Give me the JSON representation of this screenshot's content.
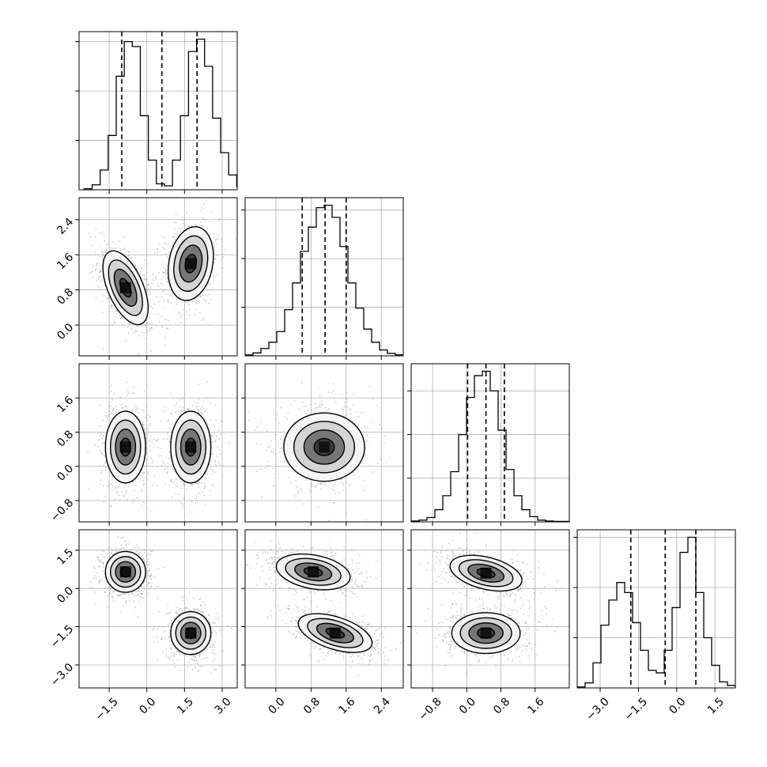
{
  "chart_data": {
    "type": "corner",
    "title": "",
    "parameters": [
      {
        "index": 0,
        "range": [
          -2.7,
          3.6
        ],
        "ticks": [
          -1.5,
          0.0,
          1.5,
          3.0
        ],
        "tick_labels": [
          "−1.5",
          "0.0",
          "1.5",
          "3.0"
        ],
        "quantiles": [
          -1.0,
          0.6,
          2.0
        ],
        "modes": [
          [
            -1.0,
            0.45
          ],
          [
            1.9,
            0.45
          ]
        ]
      },
      {
        "index": 1,
        "range": [
          -0.7,
          2.9
        ],
        "ticks": [
          0.0,
          0.8,
          1.6,
          2.4
        ],
        "tick_labels": [
          "0.0",
          "0.8",
          "1.6",
          "2.4"
        ],
        "quantiles": [
          0.6,
          1.12,
          1.6
        ],
        "modes": [
          [
            1.12,
            0.45
          ]
        ]
      },
      {
        "index": 2,
        "range": [
          -1.3,
          2.4
        ],
        "ticks": [
          -0.8,
          0.0,
          0.8,
          1.6
        ],
        "tick_labels": [
          "−0.8",
          "0.0",
          "0.8",
          "1.6"
        ],
        "quantiles": [
          0.02,
          0.45,
          0.88
        ],
        "modes": [
          [
            0.45,
            0.35
          ]
        ]
      },
      {
        "index": 3,
        "range": [
          -3.9,
          2.3
        ],
        "ticks": [
          -3.0,
          -1.5,
          0.0,
          1.5
        ],
        "tick_labels": [
          "−3.0",
          "−1.5",
          "0.0",
          "1.5"
        ],
        "quantiles": [
          -1.8,
          -0.45,
          0.75
        ],
        "modes": [
          [
            -1.75,
            0.45
          ],
          [
            0.75,
            0.4
          ]
        ]
      }
    ],
    "histograms": [
      {
        "param": 0,
        "bin_start": -2.5,
        "bin_width": 0.32,
        "counts": [
          2,
          10,
          40,
          110,
          230,
          300,
          290,
          150,
          60,
          12,
          8,
          60,
          150,
          280,
          305,
          250,
          145,
          75,
          30,
          6
        ]
      },
      {
        "param": 1,
        "bin_start": -0.7,
        "bin_width": 0.18,
        "counts": [
          2,
          6,
          15,
          28,
          50,
          95,
          150,
          215,
          265,
          305,
          310,
          285,
          225,
          150,
          98,
          55,
          28,
          12,
          5,
          2
        ]
      },
      {
        "param": 2,
        "bin_start": -1.3,
        "bin_width": 0.185,
        "counts": [
          2,
          4,
          10,
          28,
          60,
          115,
          200,
          285,
          335,
          345,
          300,
          210,
          120,
          60,
          28,
          12,
          4,
          2,
          1,
          1
        ]
      },
      {
        "param": 3,
        "bin_start": -3.9,
        "bin_width": 0.31,
        "counts": [
          2,
          10,
          50,
          125,
          175,
          210,
          190,
          130,
          75,
          35,
          30,
          75,
          160,
          270,
          300,
          190,
          100,
          45,
          12,
          5
        ]
      }
    ],
    "panels_2d": [
      {
        "x_param": 0,
        "y_param": 1,
        "blobs": [
          {
            "cx": -0.85,
            "cy": 0.85,
            "sx": 0.45,
            "sy": 0.42,
            "rho": -0.55
          },
          {
            "cx": 1.75,
            "cy": 1.4,
            "sx": 0.45,
            "sy": 0.42,
            "rho": 0.2
          }
        ]
      },
      {
        "x_param": 0,
        "y_param": 2,
        "blobs": [
          {
            "cx": -0.85,
            "cy": 0.45,
            "sx": 0.4,
            "sy": 0.42,
            "rho": 0.0
          },
          {
            "cx": 1.75,
            "cy": 0.45,
            "sx": 0.4,
            "sy": 0.42,
            "rho": 0.0
          }
        ]
      },
      {
        "x_param": 1,
        "y_param": 2,
        "blobs": [
          {
            "cx": 1.1,
            "cy": 0.45,
            "sx": 0.46,
            "sy": 0.4,
            "rho": 0.0
          }
        ]
      },
      {
        "x_param": 0,
        "y_param": 3,
        "blobs": [
          {
            "cx": -0.85,
            "cy": 0.65,
            "sx": 0.4,
            "sy": 0.4,
            "rho": 0.0
          },
          {
            "cx": 1.75,
            "cy": -1.75,
            "sx": 0.4,
            "sy": 0.42,
            "rho": 0.0
          }
        ]
      },
      {
        "x_param": 1,
        "y_param": 3,
        "blobs": [
          {
            "cx": 0.85,
            "cy": 0.65,
            "sx": 0.42,
            "sy": 0.35,
            "rho": -0.3
          },
          {
            "cx": 1.35,
            "cy": -1.75,
            "sx": 0.42,
            "sy": 0.38,
            "rho": -0.5
          }
        ]
      },
      {
        "x_param": 2,
        "y_param": 3,
        "blobs": [
          {
            "cx": 0.45,
            "cy": 0.6,
            "sx": 0.42,
            "sy": 0.35,
            "rho": -0.4
          },
          {
            "cx": 0.45,
            "cy": -1.75,
            "sx": 0.4,
            "sy": 0.4,
            "rho": 0.0
          }
        ]
      }
    ],
    "contour_levels_sigma": [
      0.5,
      1.0,
      1.5,
      2.0
    ],
    "xlabel": "",
    "ylabel": "",
    "grid": true,
    "legend": "none"
  }
}
